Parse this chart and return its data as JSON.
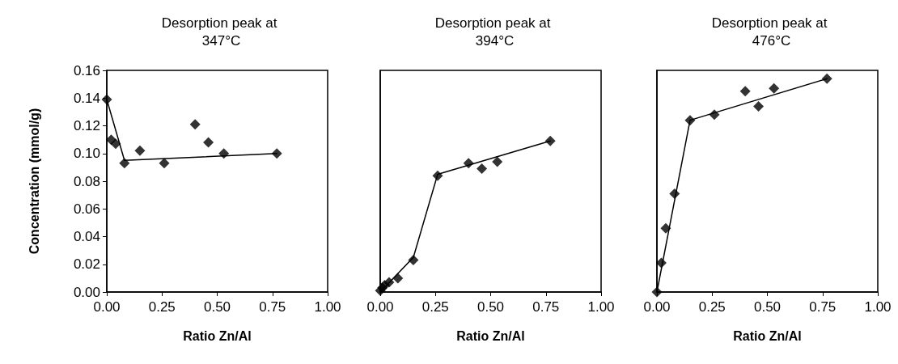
{
  "chart_data": [
    {
      "type": "scatter",
      "title": "Desorption peak at 347°C",
      "xlabel": "Ratio Zn/Al",
      "ylabel": "Concentration (mmol/g)",
      "xlim": [
        0,
        1
      ],
      "xticks": [
        {
          "value": 0,
          "label": "0.00"
        },
        {
          "value": 0.25,
          "label": "0.25"
        },
        {
          "value": 0.5,
          "label": "0.50"
        },
        {
          "value": 0.75,
          "label": "0.75"
        },
        {
          "value": 1,
          "label": "1.00"
        }
      ],
      "ylim": [
        0,
        0.16
      ],
      "yticks": [
        {
          "value": 0,
          "label": "0.00"
        },
        {
          "value": 0.02,
          "label": "0.02"
        },
        {
          "value": 0.04,
          "label": "0.04"
        },
        {
          "value": 0.06,
          "label": "0.06"
        },
        {
          "value": 0.08,
          "label": "0.08"
        },
        {
          "value": 0.1,
          "label": "0.10"
        },
        {
          "value": 0.12,
          "label": "0.12"
        },
        {
          "value": 0.14,
          "label": "0.14"
        },
        {
          "value": 0.16,
          "label": "0.16"
        }
      ],
      "grid": false,
      "series": [
        {
          "color": "#000000",
          "marker": "diamond",
          "x": [
            0,
            0.02,
            0.04,
            0.08,
            0.15,
            0.26,
            0.4,
            0.46,
            0.53,
            0.77
          ],
          "values": [
            0.139,
            0.11,
            0.107,
            0.093,
            0.102,
            0.093,
            0.121,
            0.108,
            0.1,
            0.1
          ]
        },
        {
          "type": "line",
          "color": "#000000",
          "marker": "none",
          "line_style": "solid",
          "x": [
            0,
            0.08,
            0.77
          ],
          "values": [
            0.139,
            0.095,
            0.1
          ]
        }
      ]
    },
    {
      "type": "scatter",
      "title": "Desorption peak at 394°C",
      "xlabel": "Ratio Zn/Al",
      "xlim": [
        0,
        1
      ],
      "xticks": [
        {
          "value": 0,
          "label": "0.00"
        },
        {
          "value": 0.25,
          "label": "0.25"
        },
        {
          "value": 0.5,
          "label": "0.50"
        },
        {
          "value": 0.75,
          "label": "0.75"
        },
        {
          "value": 1,
          "label": "1.00"
        }
      ],
      "ylim": [
        0,
        0.16
      ],
      "yticks": [
        {
          "value": 0,
          "label": null
        },
        {
          "value": 0.16,
          "label": null
        }
      ],
      "tick_labels": "x",
      "grid": false,
      "series": [
        {
          "color": "#000000",
          "marker": "diamond",
          "x": [
            0,
            0.01,
            0.02,
            0.04,
            0.08,
            0.15,
            0.26,
            0.4,
            0.46,
            0.53,
            0.77
          ],
          "values": [
            0.001,
            0.003,
            0.005,
            0.007,
            0.01,
            0.023,
            0.084,
            0.093,
            0.089,
            0.094,
            0.109
          ]
        },
        {
          "type": "line",
          "color": "#000000",
          "marker": "none",
          "line_style": "solid",
          "x": [
            0,
            0.15,
            0.26,
            0.77
          ],
          "values": [
            0,
            0.025,
            0.085,
            0.109
          ]
        }
      ]
    },
    {
      "type": "scatter",
      "title": "Desorption peak at 476°C",
      "xlabel": "Ratio Zn/Al",
      "xlim": [
        0,
        1
      ],
      "xticks": [
        {
          "value": 0,
          "label": "0.00"
        },
        {
          "value": 0.25,
          "label": "0.25"
        },
        {
          "value": 0.5,
          "label": "0.50"
        },
        {
          "value": 0.75,
          "label": "0.75"
        },
        {
          "value": 1,
          "label": "1.00"
        }
      ],
      "ylim": [
        0,
        0.16
      ],
      "yticks": [
        {
          "value": 0,
          "label": null
        },
        {
          "value": 0.16,
          "label": null
        }
      ],
      "tick_labels": "x",
      "grid": false,
      "series": [
        {
          "color": "#000000",
          "marker": "diamond",
          "x": [
            0,
            0.02,
            0.04,
            0.08,
            0.15,
            0.26,
            0.4,
            0.46,
            0.53,
            0.77
          ],
          "values": [
            0,
            0.021,
            0.046,
            0.071,
            0.124,
            0.128,
            0.145,
            0.134,
            0.147,
            0.154
          ]
        },
        {
          "type": "line",
          "color": "#000000",
          "marker": "none",
          "line_style": "solid",
          "x": [
            0,
            0.15,
            0.77
          ],
          "values": [
            0,
            0.124,
            0.154
          ]
        }
      ]
    }
  ]
}
